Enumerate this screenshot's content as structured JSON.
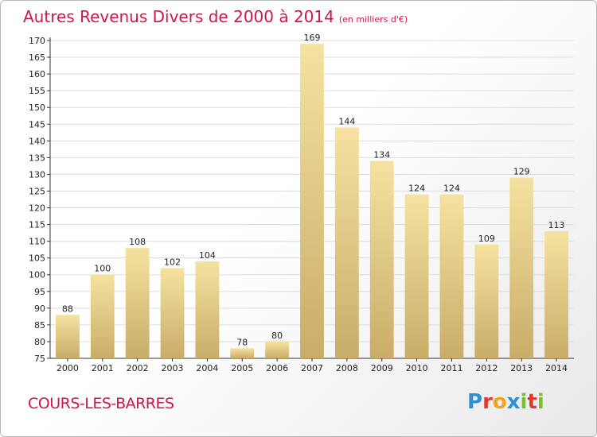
{
  "title": "Autres Revenus Divers de 2000 à 2014",
  "subtitle": "(en milliers d'€)",
  "town": "COURS-LES-BARRES",
  "logo": {
    "letters": [
      "P",
      "r",
      "o",
      "x",
      "i",
      "t",
      "i"
    ],
    "colors": [
      "#2f8fd6",
      "#e03a2e",
      "#f1a51c",
      "#2f8fd6",
      "#7bbf2f",
      "#e03a2e",
      "#7bbf2f"
    ]
  },
  "colors": {
    "title": "#d1164a",
    "bar_light": "#f6e2a0",
    "bar_dark": "#c8ad68",
    "grid": "#dddddd"
  },
  "chart_data": {
    "type": "bar",
    "categories": [
      "2000",
      "2001",
      "2002",
      "2003",
      "2004",
      "2005",
      "2006",
      "2007",
      "2008",
      "2009",
      "2010",
      "2011",
      "2012",
      "2013",
      "2014"
    ],
    "values": [
      88,
      100,
      108,
      102,
      104,
      78,
      80,
      169,
      144,
      134,
      124,
      124,
      109,
      129,
      113
    ],
    "ylim": [
      75,
      170
    ],
    "yticks": [
      75,
      80,
      85,
      90,
      95,
      100,
      105,
      110,
      115,
      120,
      125,
      130,
      135,
      140,
      145,
      150,
      155,
      160,
      165,
      170
    ],
    "grid": true
  }
}
